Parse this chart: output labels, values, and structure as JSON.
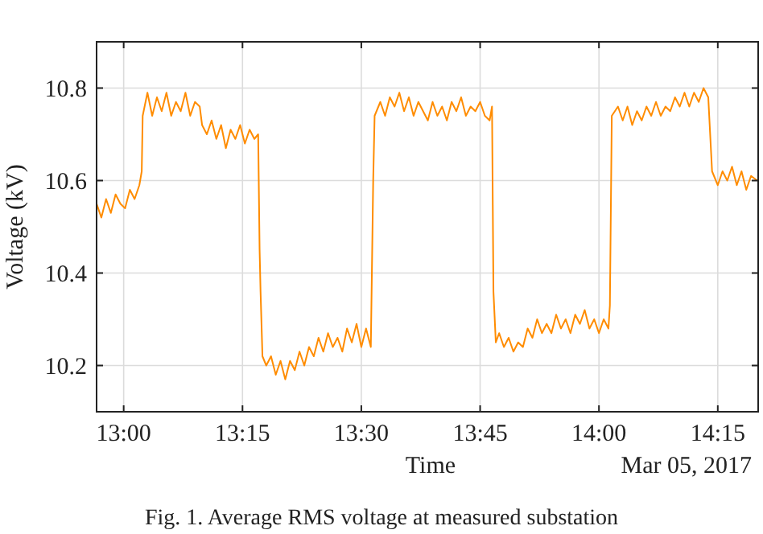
{
  "chart_data": {
    "type": "line",
    "xlabel": "Time",
    "ylabel": "Voltage (kV)",
    "annotations": [
      "Mar 05, 2017",
      "Fig. 1.  Average RMS voltage at measured substation"
    ],
    "xlim": [
      12.943,
      14.335
    ],
    "ylim": [
      10.1,
      10.9
    ],
    "xticks": [
      {
        "value": 13,
        "label": "13:00"
      },
      {
        "value": 13.25,
        "label": "13:15"
      },
      {
        "value": 13.5,
        "label": "13:30"
      },
      {
        "value": 13.75,
        "label": "13:45"
      },
      {
        "value": 14,
        "label": "14:00"
      },
      {
        "value": 14.25,
        "label": "14:15"
      }
    ],
    "yticks": [
      10.2,
      10.4,
      10.6,
      10.8
    ],
    "grid": true,
    "line_style": "solid",
    "series": [
      {
        "color": "#ff8c00",
        "x": [
          12.943,
          12.953,
          12.963,
          12.973,
          12.983,
          12.993,
          13.003,
          13.013,
          13.023,
          13.033,
          13.038,
          13.04,
          13.05,
          13.06,
          13.07,
          13.08,
          13.09,
          13.1,
          13.11,
          13.12,
          13.13,
          13.14,
          13.15,
          13.16,
          13.165,
          13.175,
          13.185,
          13.195,
          13.205,
          13.215,
          13.225,
          13.235,
          13.245,
          13.255,
          13.265,
          13.275,
          13.283,
          13.286,
          13.288,
          13.292,
          13.3,
          13.31,
          13.32,
          13.33,
          13.34,
          13.35,
          13.36,
          13.37,
          13.38,
          13.39,
          13.4,
          13.41,
          13.42,
          13.43,
          13.44,
          13.45,
          13.46,
          13.47,
          13.48,
          13.49,
          13.5,
          13.51,
          13.52,
          13.525,
          13.528,
          13.54,
          13.55,
          13.56,
          13.57,
          13.58,
          13.59,
          13.6,
          13.61,
          13.62,
          13.63,
          13.64,
          13.65,
          13.66,
          13.67,
          13.68,
          13.69,
          13.7,
          13.71,
          13.72,
          13.73,
          13.74,
          13.75,
          13.76,
          13.77,
          13.775,
          13.778,
          13.783,
          13.79,
          13.8,
          13.81,
          13.82,
          13.83,
          13.84,
          13.85,
          13.86,
          13.87,
          13.88,
          13.89,
          13.9,
          13.91,
          13.92,
          13.93,
          13.94,
          13.95,
          13.96,
          13.97,
          13.98,
          13.99,
          14,
          14.01,
          14.02,
          14.023,
          14.027,
          14.04,
          14.05,
          14.06,
          14.07,
          14.08,
          14.09,
          14.1,
          14.11,
          14.12,
          14.13,
          14.14,
          14.15,
          14.16,
          14.17,
          14.18,
          14.19,
          14.2,
          14.21,
          14.22,
          14.23,
          14.238,
          14.242,
          14.25,
          14.26,
          14.27,
          14.28,
          14.29,
          14.3,
          14.31,
          14.32,
          14.333
        ],
        "values": [
          10.55,
          10.52,
          10.56,
          10.53,
          10.57,
          10.55,
          10.54,
          10.58,
          10.56,
          10.59,
          10.62,
          10.74,
          10.79,
          10.74,
          10.78,
          10.75,
          10.79,
          10.74,
          10.77,
          10.75,
          10.79,
          10.74,
          10.77,
          10.76,
          10.72,
          10.7,
          10.73,
          10.69,
          10.72,
          10.67,
          10.71,
          10.69,
          10.72,
          10.68,
          10.71,
          10.69,
          10.7,
          10.45,
          10.36,
          10.22,
          10.2,
          10.22,
          10.18,
          10.21,
          10.17,
          10.21,
          10.19,
          10.23,
          10.2,
          10.24,
          10.22,
          10.26,
          10.23,
          10.27,
          10.24,
          10.26,
          10.23,
          10.28,
          10.25,
          10.29,
          10.24,
          10.28,
          10.24,
          10.6,
          10.74,
          10.77,
          10.74,
          10.78,
          10.76,
          10.79,
          10.75,
          10.78,
          10.74,
          10.77,
          10.75,
          10.73,
          10.77,
          10.74,
          10.76,
          10.73,
          10.77,
          10.75,
          10.78,
          10.74,
          10.76,
          10.75,
          10.77,
          10.74,
          10.73,
          10.76,
          10.36,
          10.25,
          10.27,
          10.24,
          10.26,
          10.23,
          10.25,
          10.24,
          10.28,
          10.26,
          10.3,
          10.27,
          10.29,
          10.27,
          10.31,
          10.28,
          10.3,
          10.27,
          10.31,
          10.29,
          10.32,
          10.28,
          10.3,
          10.27,
          10.3,
          10.28,
          10.33,
          10.74,
          10.76,
          10.73,
          10.76,
          10.72,
          10.75,
          10.73,
          10.76,
          10.74,
          10.77,
          10.74,
          10.76,
          10.75,
          10.78,
          10.76,
          10.79,
          10.76,
          10.79,
          10.77,
          10.8,
          10.78,
          10.62,
          10.61,
          10.59,
          10.62,
          10.6,
          10.63,
          10.59,
          10.62,
          10.58,
          10.61,
          10.6
        ]
      }
    ]
  }
}
